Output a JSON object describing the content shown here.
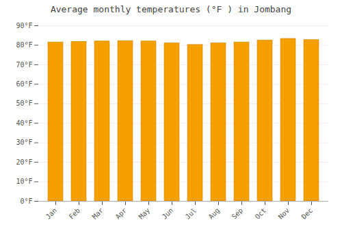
{
  "chart_data": {
    "type": "bar",
    "title": "Average monthly temperatures (°F ) in Jombang",
    "categories": [
      "Jan",
      "Feb",
      "Mar",
      "Apr",
      "May",
      "Jun",
      "Jul",
      "Aug",
      "Sep",
      "Oct",
      "Nov",
      "Dec"
    ],
    "values": [
      81.5,
      81.8,
      82.0,
      82.2,
      82.0,
      81.0,
      80.2,
      81.0,
      81.5,
      82.5,
      83.3,
      82.7
    ],
    "color": "#F5A000",
    "ylim": [
      0,
      90
    ],
    "yticks": [
      {
        "value": 0,
        "label": "0°F"
      },
      {
        "value": 10,
        "label": "10°F"
      },
      {
        "value": 20,
        "label": "20°F"
      },
      {
        "value": 30,
        "label": "30°F"
      },
      {
        "value": 40,
        "label": "40°F"
      },
      {
        "value": 50,
        "label": "50°F"
      },
      {
        "value": 60,
        "label": "60°F"
      },
      {
        "value": 70,
        "label": "70°F"
      },
      {
        "value": 80,
        "label": "80°F"
      },
      {
        "value": 90,
        "label": "90°F"
      }
    ],
    "grid": true
  }
}
